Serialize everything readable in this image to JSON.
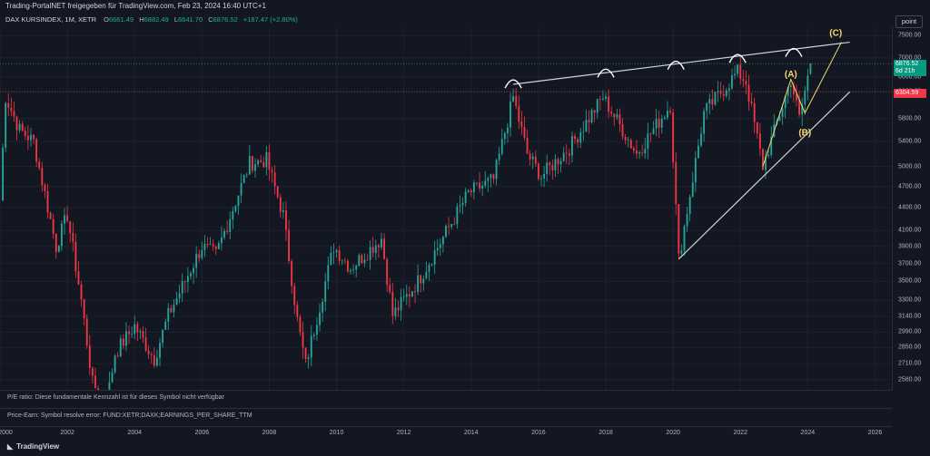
{
  "header": {
    "title": "Trading-PortalNET freigegeben für TradingView.com, Feb 23, 2024 16:40 UTC+1"
  },
  "legend": {
    "symbol": "DAX KURSINDEX, 1M, XETR",
    "open_label": "O",
    "open": "6661.49",
    "high_label": "H",
    "high": "6882.49",
    "low_label": "L",
    "low": "6641.70",
    "close_label": "C",
    "close": "6876.52",
    "change": "+187.47 (+2.80%)"
  },
  "scale_button": "point",
  "price_axis": {
    "ticks": [
      "7500.00",
      "7000.00",
      "6600.00",
      "6300.00",
      "5800.00",
      "5400.00",
      "5000.00",
      "4700.00",
      "4400.00",
      "4100.00",
      "3900.00",
      "3700.00",
      "3500.00",
      "3300.00",
      "3140.00",
      "2990.00",
      "2850.00",
      "2710.00",
      "2580.00"
    ],
    "last_price": "6876.52",
    "countdown": "6d 21h",
    "line_price": "6304.59"
  },
  "time_axis": {
    "ticks": [
      "2000",
      "2002",
      "2004",
      "2006",
      "2008",
      "2010",
      "2012",
      "2014",
      "2016",
      "2018",
      "2020",
      "2022",
      "2024",
      "2026"
    ]
  },
  "panels": {
    "pe_message": "P/E ratio: Diese fundamentale Kennzahl ist für dieses Symbol nicht verfügbar",
    "price_earn_message": "Price-Earn: Symbol resolve error: FUND:XETR;DAXK;EARNINGS_PER_SHARE_TTM"
  },
  "footer": {
    "brand": "TradingView"
  },
  "colors": {
    "up": "#26a69a",
    "down": "#f23645",
    "background": "#131722",
    "annotation": "#f5d76e",
    "trendline": "#d1d4dc"
  },
  "chart_data": {
    "type": "candlestick",
    "interval": "1M",
    "x_range": [
      "2000-01",
      "2026-06"
    ],
    "y_scale": "log",
    "ylim": [
      2500,
      7700
    ],
    "anchors": [
      [
        "2000-01",
        4500
      ],
      [
        "2000-03",
        6200
      ],
      [
        "2000-08",
        5600
      ],
      [
        "2001-01",
        5400
      ],
      [
        "2001-09",
        3900
      ],
      [
        "2002-01",
        4300
      ],
      [
        "2002-06",
        3300
      ],
      [
        "2002-10",
        2550
      ],
      [
        "2003-03",
        2400
      ],
      [
        "2003-06",
        2800
      ],
      [
        "2004-01",
        3050
      ],
      [
        "2004-08",
        2750
      ],
      [
        "2005-01",
        3150
      ],
      [
        "2006-01",
        3900
      ],
      [
        "2006-06",
        3800
      ],
      [
        "2007-06",
        5050
      ],
      [
        "2007-12",
        5100
      ],
      [
        "2008-06",
        4300
      ],
      [
        "2008-11",
        3100
      ],
      [
        "2009-02",
        2700
      ],
      [
        "2009-12",
        3900
      ],
      [
        "2010-06",
        3650
      ],
      [
        "2011-05",
        4000
      ],
      [
        "2011-09",
        3150
      ],
      [
        "2012-06",
        3500
      ],
      [
        "2013-12",
        4600
      ],
      [
        "2014-09",
        4800
      ],
      [
        "2015-04",
        6200
      ],
      [
        "2015-09",
        5200
      ],
      [
        "2016-02",
        4850
      ],
      [
        "2016-12",
        5300
      ],
      [
        "2017-12",
        6200
      ],
      [
        "2018-12",
        5200
      ],
      [
        "2019-12",
        6050
      ],
      [
        "2020-03",
        3750
      ],
      [
        "2020-12",
        5900
      ],
      [
        "2021-12",
        6700
      ],
      [
        "2022-03",
        6500
      ],
      [
        "2022-09",
        5000
      ],
      [
        "2023-07",
        6550
      ],
      [
        "2023-10",
        5800
      ],
      [
        "2024-02",
        6876.52
      ]
    ],
    "last_candle": {
      "open": 6661.49,
      "high": 6882.49,
      "low": 6641.7,
      "close": 6876.52
    },
    "annotations": {
      "labels": [
        "(A)",
        "(B)",
        "(C)"
      ],
      "upper_trendline": [
        [
          "2015-04",
          6450
        ],
        [
          "2025-04",
          7350
        ]
      ],
      "lower_trendline": [
        [
          "2020-03",
          3750
        ],
        [
          "2025-04",
          6300
        ]
      ],
      "tops": [
        "2015-04",
        "2018-01",
        "2020-02",
        "2021-12",
        "2023-08"
      ],
      "wave_path": [
        [
          "2022-09",
          5000
        ],
        [
          "2023-07",
          6550
        ],
        [
          "2023-12",
          5900
        ],
        [
          "2025-01",
          7350
        ]
      ],
      "wave_label_points": {
        "(A)": [
          "2023-07",
          6600
        ],
        "(B)": [
          "2023-12",
          5500
        ],
        "(C)": [
          "2024-11",
          7500
        ]
      }
    },
    "horizontal_lines": [
      6876.52,
      6304.59
    ]
  }
}
